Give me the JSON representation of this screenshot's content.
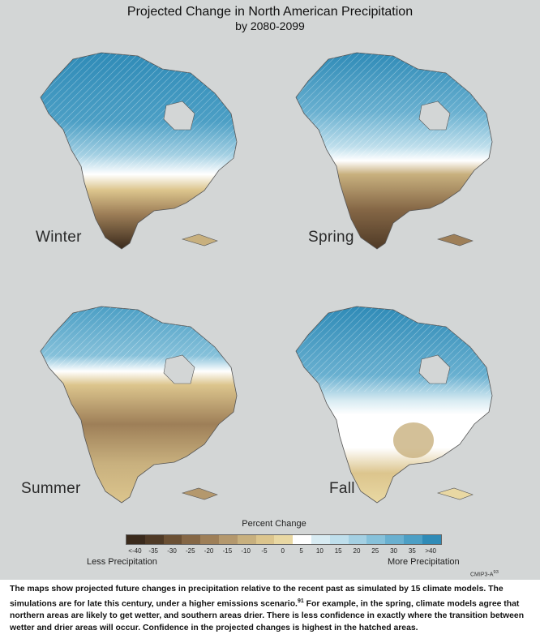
{
  "header": {
    "title": "Projected Change in North American Precipitation",
    "subtitle": "by 2080-2099"
  },
  "maps": [
    {
      "season": "Winter"
    },
    {
      "season": "Spring"
    },
    {
      "season": "Summer"
    },
    {
      "season": "Fall"
    }
  ],
  "legend": {
    "title": "Percent Change",
    "ticks": [
      "<-40",
      "-35",
      "-30",
      "-25",
      "-20",
      "-15",
      "-10",
      "-5",
      "0",
      "5",
      "10",
      "15",
      "20",
      "25",
      "30",
      "35",
      ">40"
    ],
    "colors": [
      "#3a2a1c",
      "#4f3a26",
      "#6b5034",
      "#856746",
      "#9e7f58",
      "#b4986d",
      "#c8b07e",
      "#dcc58d",
      "#e9d8a3",
      "#ffffff",
      "#d8ebf2",
      "#bfdfec",
      "#a4d0e3",
      "#86c1da",
      "#69b0d0",
      "#4c9fc5",
      "#2f8bb7"
    ],
    "less_label": "Less Precipitation",
    "more_label": "More Precipitation"
  },
  "credit": {
    "label": "CMIP3-A",
    "sup": "93"
  },
  "caption": {
    "before_sup": "The maps show projected future changes in precipitation relative to the recent past as simulated by 15 climate models. The simulations are for late this century, under a higher emissions scenario.",
    "sup": "91",
    "after_sup": " For example, in the spring, climate models agree that northern areas are likely to get wetter, and southern areas drier. There is less confidence in exactly where the transition between wetter and drier areas will occur. Confidence in the projected changes is highest in the hatched areas."
  }
}
